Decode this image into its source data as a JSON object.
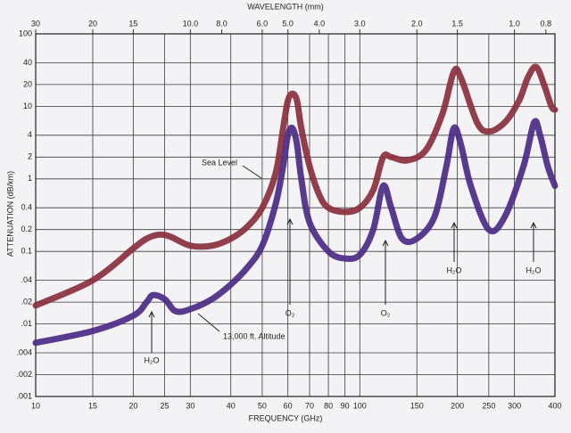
{
  "chart_data": {
    "type": "line",
    "x_label": "FREQUENCY (GHz)",
    "y_label": "ATTENUATION (dB/km)",
    "x2_label": "WAVELENGTH (mm)",
    "log_x": true,
    "log_y": true,
    "grid": true,
    "xlim": [
      10,
      400
    ],
    "xticks": [
      10,
      15,
      20,
      25,
      30,
      40,
      50,
      60,
      70,
      80,
      90,
      100,
      150,
      200,
      250,
      300,
      400
    ],
    "ylim": [
      0.001,
      100
    ],
    "yticks": [
      100,
      40,
      20,
      10,
      4,
      2,
      1,
      0.4,
      0.2,
      0.1,
      {
        "value": 0.04,
        "label": ".04"
      },
      {
        "value": 0.02,
        "label": ".02"
      },
      {
        "value": 0.01,
        "label": ".01"
      },
      {
        "value": 0.004,
        "label": ".004"
      },
      {
        "value": 0.002,
        "label": ".002"
      },
      {
        "value": 0.001,
        "label": ".001"
      }
    ],
    "x2lim": [
      30,
      0.75
    ],
    "x2ticks": [
      30,
      20,
      15,
      {
        "value": 10,
        "label": "10.0"
      },
      {
        "value": 8,
        "label": "8.0"
      },
      {
        "value": 6,
        "label": "6.0"
      },
      {
        "value": 5,
        "label": "5.0"
      },
      {
        "value": 4,
        "label": "4.0"
      },
      {
        "value": 3,
        "label": "3.0"
      },
      {
        "value": 2,
        "label": "2.0"
      },
      1.5,
      {
        "value": 1,
        "label": "1.0"
      },
      0.8
    ],
    "series": [
      {
        "name": "Sea Level",
        "color": "#8a2f3c",
        "x": [
          10,
          15,
          20,
          22,
          24,
          26,
          30,
          35,
          40,
          45,
          50,
          55,
          58,
          60,
          62,
          64,
          66,
          70,
          75,
          80,
          90,
          100,
          110,
          118,
          125,
          140,
          160,
          180,
          195,
          205,
          230,
          250,
          280,
          310,
          330,
          350,
          370,
          390,
          400
        ],
        "values": [
          0.018,
          0.04,
          0.11,
          0.15,
          0.17,
          0.16,
          0.12,
          0.12,
          0.15,
          0.22,
          0.4,
          1.2,
          5,
          12,
          15,
          12,
          5,
          1.5,
          0.6,
          0.4,
          0.35,
          0.4,
          0.7,
          2,
          2,
          1.8,
          2.5,
          8,
          30,
          25,
          6,
          4.5,
          6,
          12,
          25,
          35,
          20,
          10,
          9
        ]
      },
      {
        "name": "13,000 ft. Altitude",
        "color": "#4b2a86",
        "x": [
          10,
          15,
          20,
          22,
          23,
          25,
          27,
          30,
          35,
          40,
          45,
          50,
          55,
          58,
          60,
          62,
          64,
          66,
          70,
          80,
          90,
          100,
          110,
          118,
          125,
          135,
          150,
          170,
          185,
          195,
          205,
          220,
          250,
          280,
          320,
          345,
          360,
          380,
          400
        ],
        "values": [
          0.0055,
          0.008,
          0.013,
          0.02,
          0.025,
          0.022,
          0.015,
          0.016,
          0.022,
          0.035,
          0.06,
          0.12,
          0.45,
          1.5,
          4,
          5,
          3,
          1,
          0.25,
          0.1,
          0.08,
          0.09,
          0.2,
          0.8,
          0.4,
          0.15,
          0.15,
          0.3,
          1.5,
          5,
          3,
          0.8,
          0.2,
          0.3,
          1.5,
          6,
          4,
          1.5,
          0.8
        ]
      }
    ],
    "annotations": [
      "H₂O",
      "O₂",
      "O₂",
      "H₂O",
      "H₂O"
    ]
  }
}
